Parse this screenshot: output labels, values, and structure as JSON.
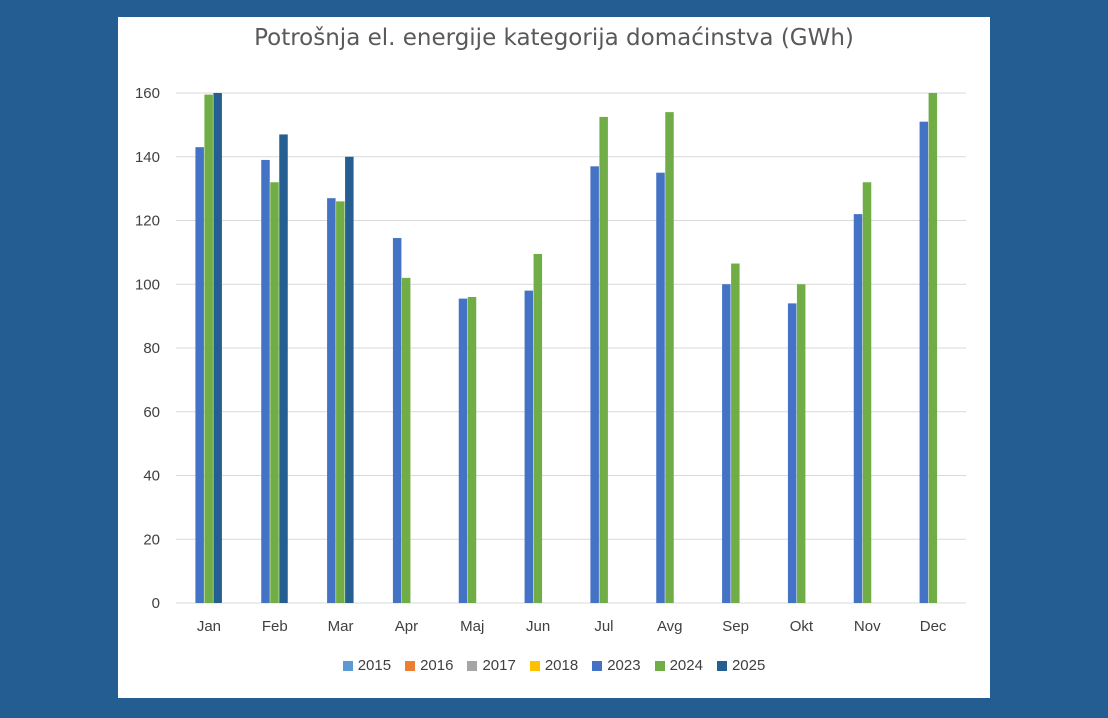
{
  "chart_data": {
    "type": "bar",
    "title": "Potrošnja el. energije kategorija domaćinstva (GWh)",
    "xlabel": "",
    "ylabel": "",
    "ylim": [
      0,
      160
    ],
    "yticks": [
      0,
      20,
      40,
      60,
      80,
      100,
      120,
      140,
      160
    ],
    "grid": true,
    "legend_position": "bottom",
    "categories": [
      "Jan",
      "Feb",
      "Mar",
      "Apr",
      "Maj",
      "Jun",
      "Jul",
      "Avg",
      "Sep",
      "Okt",
      "Nov",
      "Dec"
    ],
    "series": [
      {
        "name": "2015",
        "color": "#5b9bd5",
        "values": [
          null,
          null,
          null,
          null,
          null,
          null,
          null,
          null,
          null,
          null,
          null,
          null
        ]
      },
      {
        "name": "2016",
        "color": "#ed7d31",
        "values": [
          null,
          null,
          null,
          null,
          null,
          null,
          null,
          null,
          null,
          null,
          null,
          null
        ]
      },
      {
        "name": "2017",
        "color": "#a5a5a5",
        "values": [
          null,
          null,
          null,
          null,
          null,
          null,
          null,
          null,
          null,
          null,
          null,
          null
        ]
      },
      {
        "name": "2018",
        "color": "#ffc000",
        "values": [
          null,
          null,
          null,
          null,
          null,
          null,
          null,
          null,
          null,
          null,
          null,
          null
        ]
      },
      {
        "name": "2023",
        "color": "#4472c4",
        "values": [
          143,
          139,
          127,
          114.5,
          95.5,
          98,
          137,
          135,
          100,
          94,
          122,
          151
        ]
      },
      {
        "name": "2024",
        "color": "#70ad47",
        "values": [
          159.5,
          132,
          126,
          102,
          96,
          109.5,
          152.5,
          154,
          106.5,
          100,
          132,
          160
        ]
      },
      {
        "name": "2025",
        "color": "#255e91",
        "values": [
          160,
          147,
          140,
          null,
          null,
          null,
          null,
          null,
          null,
          null,
          null,
          null
        ]
      }
    ]
  }
}
